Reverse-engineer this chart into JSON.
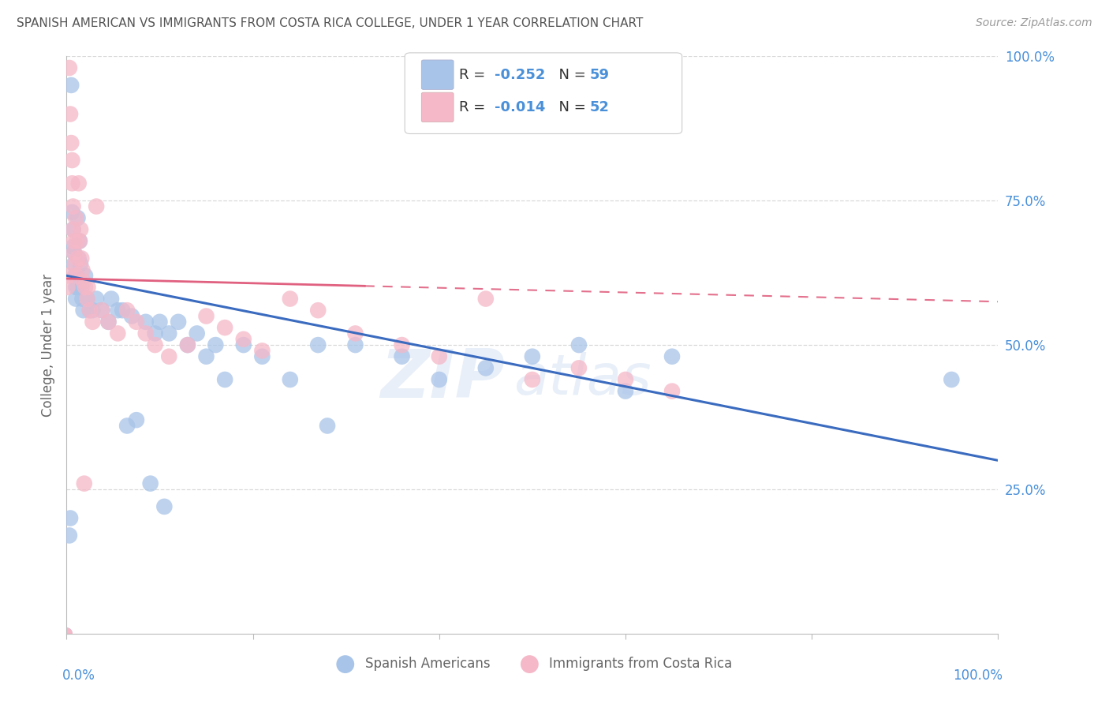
{
  "title": "SPANISH AMERICAN VS IMMIGRANTS FROM COSTA RICA COLLEGE, UNDER 1 YEAR CORRELATION CHART",
  "source": "Source: ZipAtlas.com",
  "ylabel": "College, Under 1 year",
  "ytick_labels": [
    "100.0%",
    "75.0%",
    "50.0%",
    "25.0%"
  ],
  "ytick_values": [
    1.0,
    0.75,
    0.5,
    0.25
  ],
  "xlim": [
    0.0,
    1.0
  ],
  "ylim": [
    0.0,
    1.0
  ],
  "blue_R": -0.252,
  "blue_N": 59,
  "pink_R": -0.014,
  "pink_N": 52,
  "blue_dot_color": "#a8c4e8",
  "pink_dot_color": "#f5b8c8",
  "blue_line_color": "#3a6bbf",
  "pink_line_color": "#e06080",
  "legend_label_blue": "Spanish Americans",
  "legend_label_pink": "Immigrants from Costa Rica",
  "watermark_zip": "ZIP",
  "watermark_atlas": "atlas",
  "blue_line_y_start": 0.62,
  "blue_line_y_end": 0.3,
  "pink_line_y_start": 0.615,
  "pink_line_y_end": 0.575,
  "pink_line_solid_end": 0.32,
  "background_color": "#ffffff",
  "grid_color": "#d8d8d8",
  "title_color": "#555555",
  "tick_label_color": "#4a90d9",
  "blue_scatter_x": [
    0.005,
    0.006,
    0.007,
    0.007,
    0.008,
    0.008,
    0.009,
    0.01,
    0.01,
    0.011,
    0.012,
    0.012,
    0.013,
    0.014,
    0.015,
    0.016,
    0.017,
    0.018,
    0.02,
    0.022,
    0.025,
    0.028,
    0.032,
    0.038,
    0.045,
    0.055,
    0.065,
    0.075,
    0.085,
    0.095,
    0.11,
    0.13,
    0.15,
    0.17,
    0.19,
    0.21,
    0.24,
    0.27,
    0.31,
    0.36,
    0.4,
    0.45,
    0.5,
    0.55,
    0.6,
    0.65,
    0.1,
    0.12,
    0.14,
    0.16,
    0.28,
    0.048,
    0.06,
    0.07,
    0.09,
    0.105,
    0.95,
    0.003,
    0.004
  ],
  "blue_scatter_y": [
    0.95,
    0.73,
    0.7,
    0.67,
    0.66,
    0.64,
    0.62,
    0.6,
    0.58,
    0.62,
    0.6,
    0.72,
    0.65,
    0.68,
    0.64,
    0.6,
    0.58,
    0.56,
    0.62,
    0.58,
    0.56,
    0.56,
    0.58,
    0.56,
    0.54,
    0.56,
    0.36,
    0.37,
    0.54,
    0.52,
    0.52,
    0.5,
    0.48,
    0.44,
    0.5,
    0.48,
    0.44,
    0.5,
    0.5,
    0.48,
    0.44,
    0.46,
    0.48,
    0.5,
    0.42,
    0.48,
    0.54,
    0.54,
    0.52,
    0.5,
    0.36,
    0.58,
    0.56,
    0.55,
    0.26,
    0.22,
    0.44,
    0.17,
    0.2
  ],
  "pink_scatter_x": [
    0.003,
    0.004,
    0.005,
    0.006,
    0.006,
    0.007,
    0.007,
    0.008,
    0.008,
    0.009,
    0.01,
    0.01,
    0.011,
    0.012,
    0.013,
    0.014,
    0.015,
    0.016,
    0.017,
    0.018,
    0.02,
    0.022,
    0.025,
    0.028,
    0.032,
    0.038,
    0.045,
    0.055,
    0.065,
    0.075,
    0.085,
    0.095,
    0.11,
    0.13,
    0.15,
    0.17,
    0.19,
    0.21,
    0.24,
    0.27,
    0.31,
    0.36,
    0.4,
    0.45,
    0.5,
    0.55,
    0.6,
    0.65,
    0.002,
    0.001,
    0.019,
    0.023
  ],
  "pink_scatter_y": [
    0.98,
    0.9,
    0.85,
    0.82,
    0.78,
    0.74,
    0.7,
    0.68,
    0.66,
    0.64,
    0.62,
    0.72,
    0.68,
    0.65,
    0.78,
    0.68,
    0.7,
    0.65,
    0.63,
    0.61,
    0.6,
    0.58,
    0.56,
    0.54,
    0.74,
    0.56,
    0.54,
    0.52,
    0.56,
    0.54,
    0.52,
    0.5,
    0.48,
    0.5,
    0.55,
    0.53,
    0.51,
    0.49,
    0.58,
    0.56,
    0.52,
    0.5,
    0.48,
    0.58,
    0.44,
    0.46,
    0.44,
    0.42,
    0.62,
    0.6,
    0.26,
    0.6
  ]
}
